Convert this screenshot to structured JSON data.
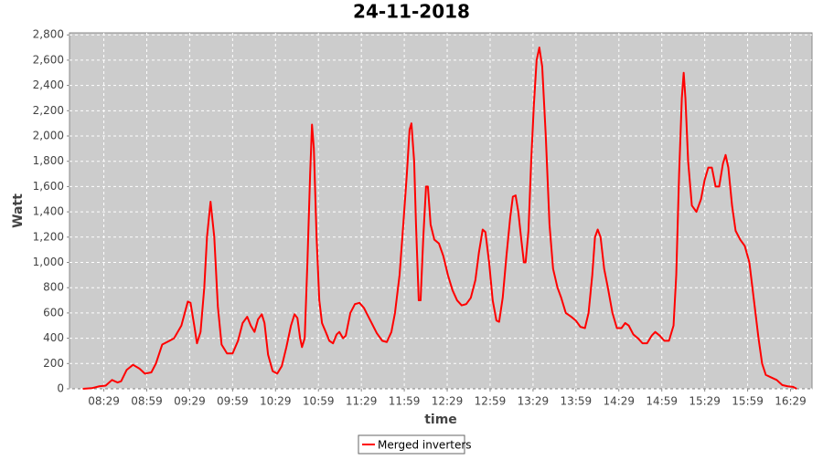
{
  "chart_data": {
    "type": "line",
    "title": "24-11-2018",
    "x_label": "time",
    "y_label": "Watt",
    "xlim": [
      485,
      1004
    ],
    "ylim": [
      0,
      2816
    ],
    "xticks": [
      {
        "value": 509,
        "label": "08:29"
      },
      {
        "value": 539,
        "label": "08:59"
      },
      {
        "value": 569,
        "label": "09:29"
      },
      {
        "value": 599,
        "label": "09:59"
      },
      {
        "value": 629,
        "label": "10:29"
      },
      {
        "value": 659,
        "label": "10:59"
      },
      {
        "value": 689,
        "label": "11:29"
      },
      {
        "value": 719,
        "label": "11:59"
      },
      {
        "value": 749,
        "label": "12:29"
      },
      {
        "value": 779,
        "label": "12:59"
      },
      {
        "value": 809,
        "label": "13:29"
      },
      {
        "value": 839,
        "label": "13:59"
      },
      {
        "value": 869,
        "label": "14:29"
      },
      {
        "value": 899,
        "label": "14:59"
      },
      {
        "value": 929,
        "label": "15:29"
      },
      {
        "value": 959,
        "label": "15:59"
      },
      {
        "value": 989,
        "label": "16:29"
      }
    ],
    "yticks": [
      0,
      200,
      400,
      600,
      800,
      {
        "value": 1000,
        "label": "1,000"
      },
      {
        "value": 1200,
        "label": "1,200"
      },
      {
        "value": 1400,
        "label": "1,400"
      },
      {
        "value": 1600,
        "label": "1,600"
      },
      {
        "value": 1800,
        "label": "1,800"
      },
      {
        "value": 2000,
        "label": "2,000"
      },
      {
        "value": 2200,
        "label": "2,200"
      },
      {
        "value": 2400,
        "label": "2,400"
      },
      {
        "value": 2600,
        "label": "2,600"
      },
      {
        "value": 2800,
        "label": "2,800"
      }
    ],
    "grid": true,
    "x": [
      494.3,
      500.7,
      505.8,
      510.3,
      514.7,
      518.6,
      521.1,
      525,
      529.4,
      533.9,
      537.7,
      542.2,
      545.4,
      549.8,
      554.9,
      558.1,
      563.2,
      567.7,
      569.6,
      572.2,
      574.1,
      576.6,
      579.2,
      581.1,
      583.6,
      586.2,
      588.7,
      591.3,
      595.1,
      599,
      602.8,
      606,
      609.2,
      611.7,
      614.3,
      616.8,
      619.4,
      621.3,
      623.8,
      627,
      630.2,
      633.4,
      636.6,
      639.8,
      642.3,
      644.3,
      646.2,
      647.5,
      649.4,
      651.3,
      653.2,
      654.5,
      655.8,
      657.7,
      659.6,
      661.5,
      664.1,
      666.6,
      669.2,
      671.7,
      673.6,
      676.2,
      678.1,
      681.3,
      684.5,
      687.7,
      690.8,
      695.3,
      699.8,
      703.6,
      706.8,
      710,
      712.5,
      715.7,
      718.3,
      720.8,
      722.7,
      724,
      725.9,
      727.2,
      729.1,
      730.4,
      732.3,
      734.2,
      735.5,
      737.4,
      740,
      743.2,
      746.3,
      749.5,
      752.7,
      755.9,
      759.1,
      762.3,
      765.5,
      768.7,
      771.2,
      773.8,
      775.7,
      778.3,
      780.8,
      783.4,
      785.3,
      787.8,
      790.4,
      793,
      794.9,
      796.8,
      798.7,
      800.6,
      802.6,
      803.8,
      805.8,
      807.7,
      809.6,
      811.5,
      813.4,
      815.4,
      817.9,
      820.5,
      823,
      826.1,
      828.7,
      831.9,
      835.7,
      838.9,
      842.1,
      845.3,
      847.8,
      850.4,
      852.3,
      854.2,
      856.2,
      858.7,
      861.3,
      864.5,
      867.6,
      870.8,
      873.4,
      875.9,
      879.1,
      882.3,
      885.5,
      888.7,
      891.9,
      894.4,
      897.6,
      900.8,
      904,
      907.2,
      909.1,
      911.1,
      913,
      914.3,
      915.5,
      917.4,
      920,
      923.2,
      926.4,
      928.9,
      931.5,
      934,
      936.6,
      939.1,
      941.7,
      943.6,
      945.5,
      948.1,
      950.6,
      953.8,
      957,
      960.2,
      963.4,
      966.6,
      969.1,
      971.7,
      975.5,
      979.3,
      983.2,
      987,
      990.8,
      993.3
    ],
    "series": [
      {
        "name": "Merged inverters",
        "color": "#ff0000",
        "values": [
          0,
          5,
          20,
          25,
          70,
          50,
          60,
          150,
          190,
          160,
          120,
          130,
          200,
          350,
          380,
          400,
          500,
          690,
          680,
          500,
          360,
          450,
          800,
          1200,
          1480,
          1200,
          650,
          350,
          280,
          280,
          380,
          520,
          570,
          500,
          450,
          550,
          590,
          520,
          270,
          140,
          120,
          180,
          330,
          500,
          590,
          560,
          400,
          330,
          400,
          1000,
          1700,
          2090,
          1900,
          1200,
          700,
          520,
          450,
          380,
          360,
          430,
          450,
          400,
          420,
          600,
          670,
          680,
          640,
          540,
          440,
          380,
          370,
          450,
          600,
          900,
          1300,
          1700,
          2050,
          2100,
          1800,
          1300,
          700,
          700,
          1200,
          1600,
          1600,
          1300,
          1180,
          1150,
          1050,
          900,
          780,
          700,
          660,
          670,
          720,
          860,
          1080,
          1260,
          1240,
          1000,
          700,
          540,
          530,
          720,
          1050,
          1350,
          1520,
          1530,
          1400,
          1200,
          1000,
          1000,
          1250,
          1800,
          2250,
          2600,
          2700,
          2550,
          2000,
          1300,
          950,
          800,
          720,
          600,
          570,
          540,
          490,
          480,
          600,
          900,
          1200,
          1260,
          1200,
          950,
          800,
          600,
          480,
          480,
          520,
          500,
          430,
          400,
          360,
          360,
          420,
          450,
          420,
          380,
          380,
          500,
          900,
          1700,
          2300,
          2500,
          2300,
          1800,
          1450,
          1400,
          1500,
          1650,
          1750,
          1750,
          1600,
          1600,
          1780,
          1850,
          1750,
          1450,
          1250,
          1180,
          1130,
          1000,
          700,
          400,
          200,
          110,
          90,
          70,
          30,
          20,
          15,
          0
        ]
      }
    ]
  }
}
